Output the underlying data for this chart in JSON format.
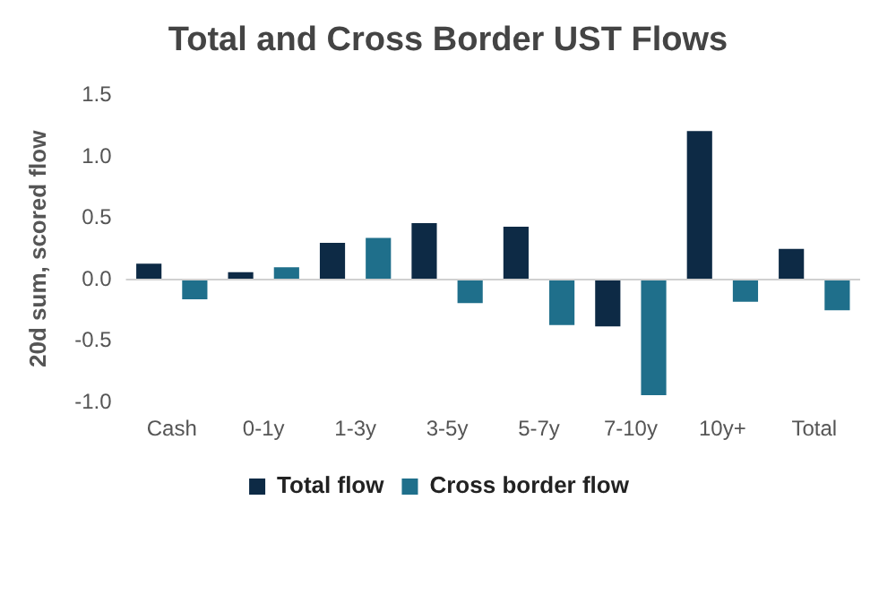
{
  "chart_data": {
    "type": "bar",
    "title": "Total and Cross Border UST Flows",
    "ylabel": "20d sum, scored flow",
    "categories": [
      "Cash",
      "0-1y",
      "1-3y",
      "3-5y",
      "5-7y",
      "7-10y",
      "10y+",
      "Total"
    ],
    "series": [
      {
        "name": "Total flow",
        "color": "#0d2a45",
        "values": [
          0.13,
          0.06,
          0.3,
          0.46,
          0.43,
          -0.38,
          1.21,
          0.25
        ]
      },
      {
        "name": "Cross border flow",
        "color": "#1f6f8b",
        "values": [
          -0.16,
          0.1,
          0.34,
          -0.19,
          -0.37,
          -0.94,
          -0.18,
          -0.25
        ]
      }
    ],
    "ylim": [
      -1.0,
      1.5
    ],
    "yticks": [
      {
        "value": -1.0,
        "label": "-1.0"
      },
      {
        "value": -0.5,
        "label": "-0.5"
      },
      {
        "value": 0,
        "label": "0.0"
      },
      {
        "value": 0.5,
        "label": "0.5"
      },
      {
        "value": 1.0,
        "label": "1.0"
      },
      {
        "value": 1.5,
        "label": "1.5"
      }
    ],
    "ref_lines": [
      {
        "axis": "y",
        "value": 0,
        "color": "#d0d0d0"
      }
    ],
    "grid": false,
    "legend": "bottom"
  }
}
